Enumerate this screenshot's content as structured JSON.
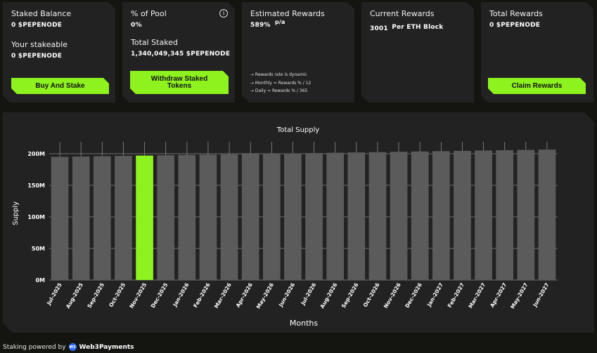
{
  "cards": {
    "staked_balance": {
      "label": "Staked Balance",
      "value": "0 $PEPENODE",
      "stakeable_label": "Your stakeable",
      "stakeable_value": "0 $PEPENODE",
      "button": "Buy And Stake"
    },
    "pool": {
      "label": "% of Pool",
      "value": "0%",
      "info_icon": "i",
      "total_label": "Total Staked",
      "total_value": "1,340,049,345 $PEPENODE",
      "button_line1": "Withdraw Staked",
      "button_line2": "Tokens"
    },
    "estimated": {
      "label": "Estimated Rewards",
      "value": "589%",
      "unit": "p/a",
      "notes": [
        "→ Rewards rate is dynamic",
        "→ Monthly = Rewards % / 12",
        "→ Daily = Rewards % / 365"
      ]
    },
    "current": {
      "label": "Current Rewards",
      "value": "3001",
      "unit": "Per ETH Block"
    },
    "total_rewards": {
      "label": "Total Rewards",
      "value": "0 $PEPENODE",
      "button": "Claim Rewards"
    }
  },
  "colors": {
    "accent": "#8ef21f",
    "bar": "#5b5b5b",
    "panel": "#222222",
    "background": "#141410"
  },
  "chart_data": {
    "type": "bar",
    "title": "Total Supply",
    "xlabel": "Months",
    "ylabel": "Supply",
    "ylim": [
      0,
      210000000
    ],
    "yticks": [
      0,
      50000000,
      100000000,
      150000000,
      200000000
    ],
    "ytick_labels": [
      "0M",
      "50M",
      "100M",
      "150M",
      "200M"
    ],
    "grid": true,
    "categories": [
      "Jul-2025",
      "Aug-2025",
      "Sep-2025",
      "Oct-2025",
      "Nov-2025",
      "Dec-2025",
      "Jan-2026",
      "Feb-2026",
      "Mar-2026",
      "Apr-2026",
      "May-2026",
      "Jun-2026",
      "Jul-2026",
      "Aug-2026",
      "Sep-2026",
      "Oct-2026",
      "Nov-2026",
      "Dec-2026",
      "Jan-2027",
      "Feb-2027",
      "Mar-2027",
      "Apr-2027",
      "May-2027",
      "Jun-2027"
    ],
    "values": [
      195000000,
      195500000,
      196000000,
      196500000,
      197000000,
      197500000,
      198000000,
      198500000,
      199000000,
      199500000,
      200000000,
      200500000,
      201000000,
      201500000,
      202000000,
      202500000,
      203000000,
      203500000,
      204000000,
      204500000,
      205000000,
      205500000,
      206000000,
      206500000
    ],
    "highlight_index": 4
  },
  "footer": {
    "text": "Staking powered by",
    "logo": "W3",
    "brand": "Web3Payments"
  }
}
